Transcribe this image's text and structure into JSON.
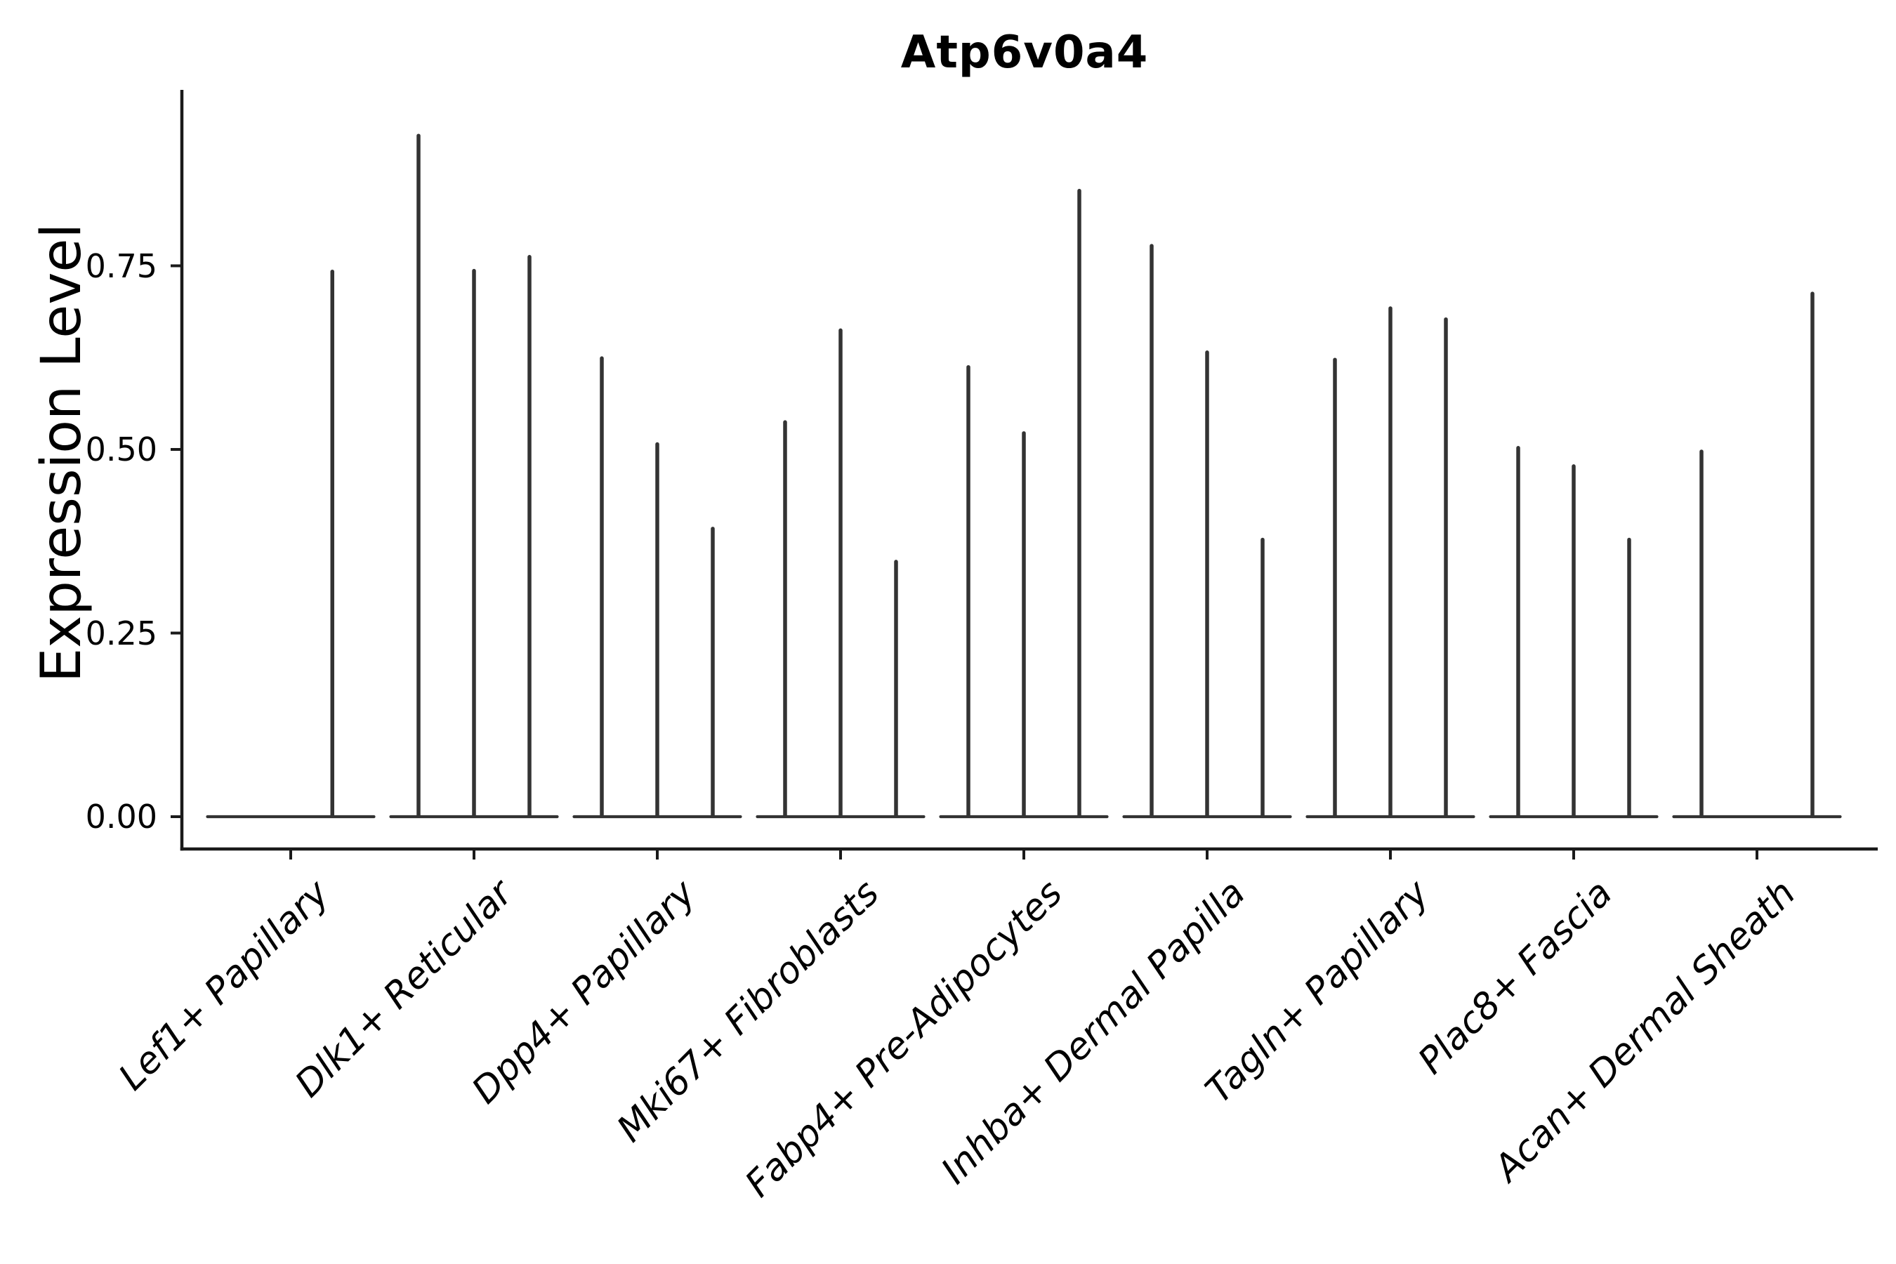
{
  "figure": {
    "background_color": "#ffffff",
    "text_color": "#000000",
    "violin_color": "#333333",
    "axis_color": "#1a1a1a"
  },
  "chart_data": {
    "type": "violin",
    "title": "Atp6v0a4",
    "xlabel": "",
    "ylabel": "Expression Level",
    "yticks": [
      "0.00",
      "0.25",
      "0.50",
      "0.75"
    ],
    "ytick_values": [
      0.0,
      0.25,
      0.5,
      0.75
    ],
    "ylim": [
      -0.04,
      0.99
    ],
    "grid": false,
    "legend": "none",
    "description": "Grouped violin plot; each cell-type category contains narrow sub-violins that are flat at expression 0 with a thin density spike rising to the maximum expression value. A max of 0 means that sub-violin is completely flat (no spike).",
    "categories": [
      {
        "label": "Lef1+ Papillary",
        "violin_maxima": [
          0,
          0.745
        ]
      },
      {
        "label": "Dlk1+ Reticular",
        "violin_maxima": [
          0.93,
          0.746,
          0.765
        ]
      },
      {
        "label": "Dpp4+ Papillary",
        "violin_maxima": [
          0.627,
          0.51,
          0.395
        ]
      },
      {
        "label": "Mki67+ Fibroblasts",
        "violin_maxima": [
          0.54,
          0.665,
          0.35
        ]
      },
      {
        "label": "Fabp4+ Pre-Adipocytes",
        "violin_maxima": [
          0.615,
          0.525,
          0.855
        ]
      },
      {
        "label": "Inhba+ Dermal Papilla",
        "violin_maxima": [
          0.78,
          0.635,
          0.38
        ]
      },
      {
        "label": "Tagln+ Papillary",
        "violin_maxima": [
          0.625,
          0.695,
          0.68
        ]
      },
      {
        "label": "Plac8+ Fascia",
        "violin_maxima": [
          0.505,
          0.48,
          0.38
        ]
      },
      {
        "label": "Acan+ Dermal Sheath",
        "violin_maxima": [
          0.5,
          0,
          0.715
        ]
      }
    ]
  }
}
